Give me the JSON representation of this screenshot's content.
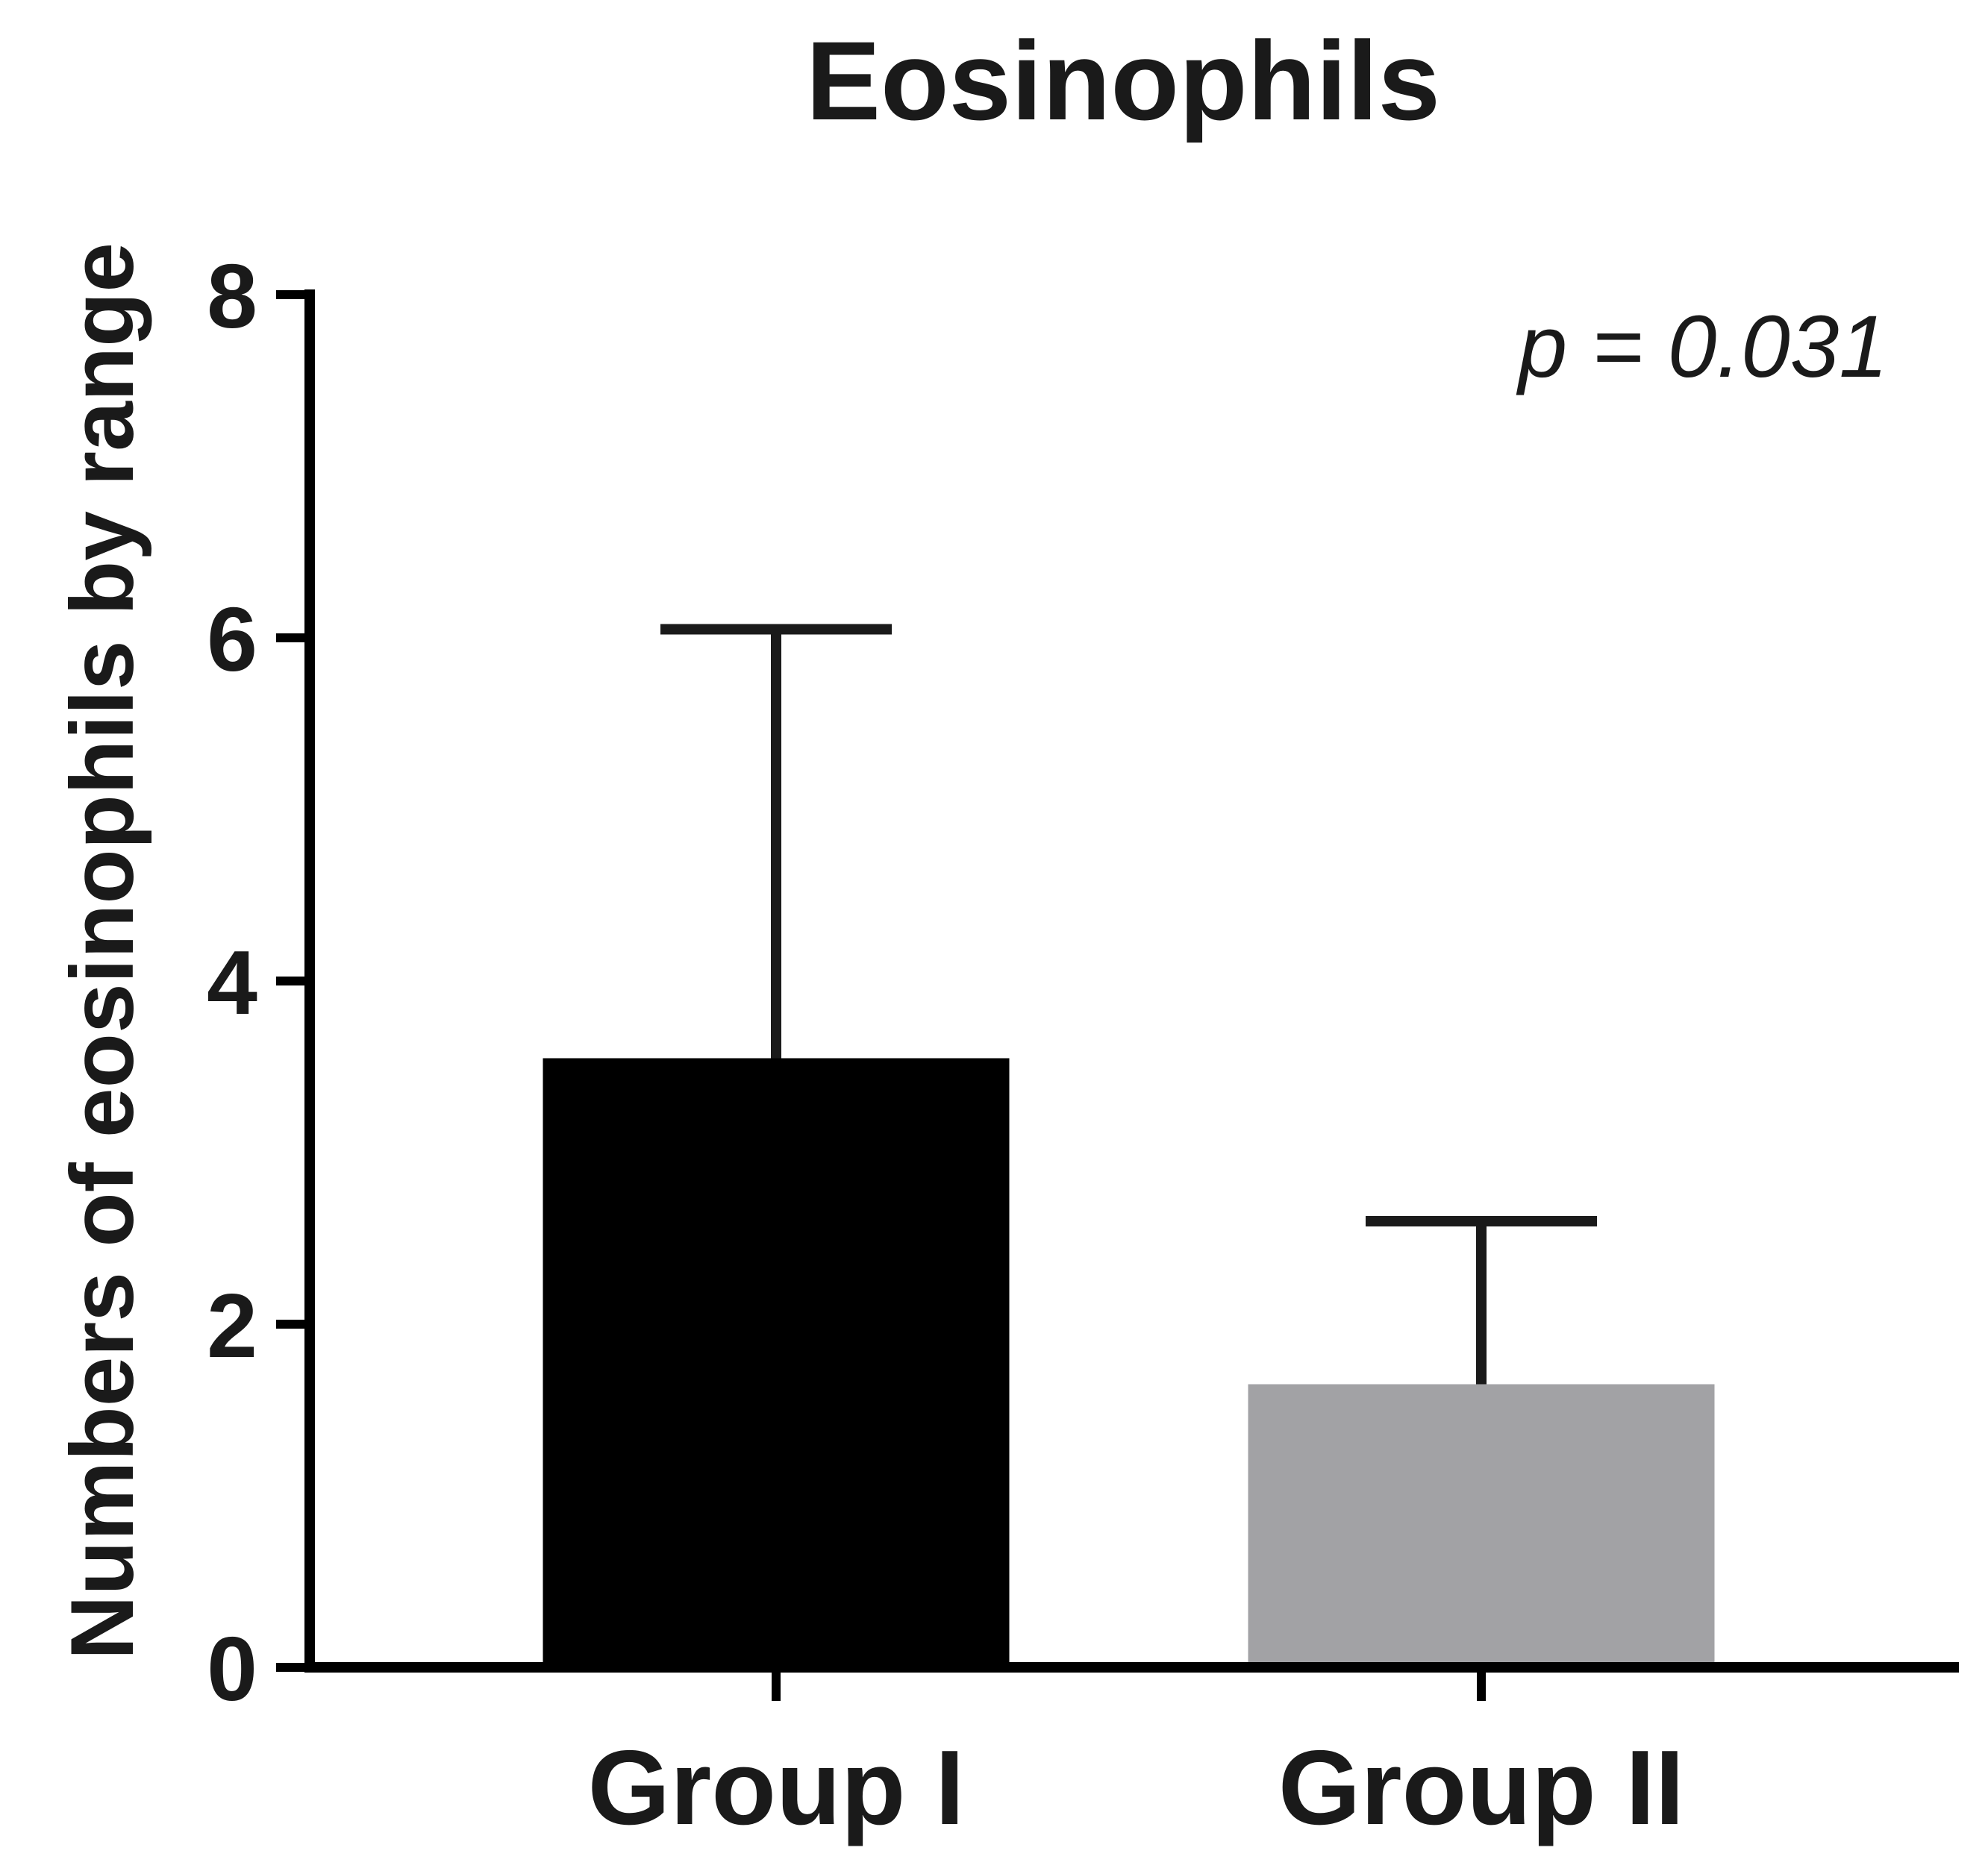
{
  "chart_data": {
    "type": "bar",
    "title": "Eosinophils",
    "xlabel": "",
    "ylabel": "Numbers of eosinophils by range",
    "ylim": [
      0,
      8
    ],
    "yticks": [
      0,
      2,
      4,
      6,
      8
    ],
    "ytick_labels": [
      "0",
      "2",
      "4",
      "6",
      "8"
    ],
    "categories": [
      "Group I",
      "Group II"
    ],
    "values": [
      3.55,
      1.65
    ],
    "error_upper": [
      6.05,
      2.6
    ],
    "bar_colors": [
      "#000000",
      "#a2a2a5"
    ],
    "annotation": "p = 0.031",
    "annotation_position": "top-right",
    "grid": false,
    "legend": "none"
  }
}
